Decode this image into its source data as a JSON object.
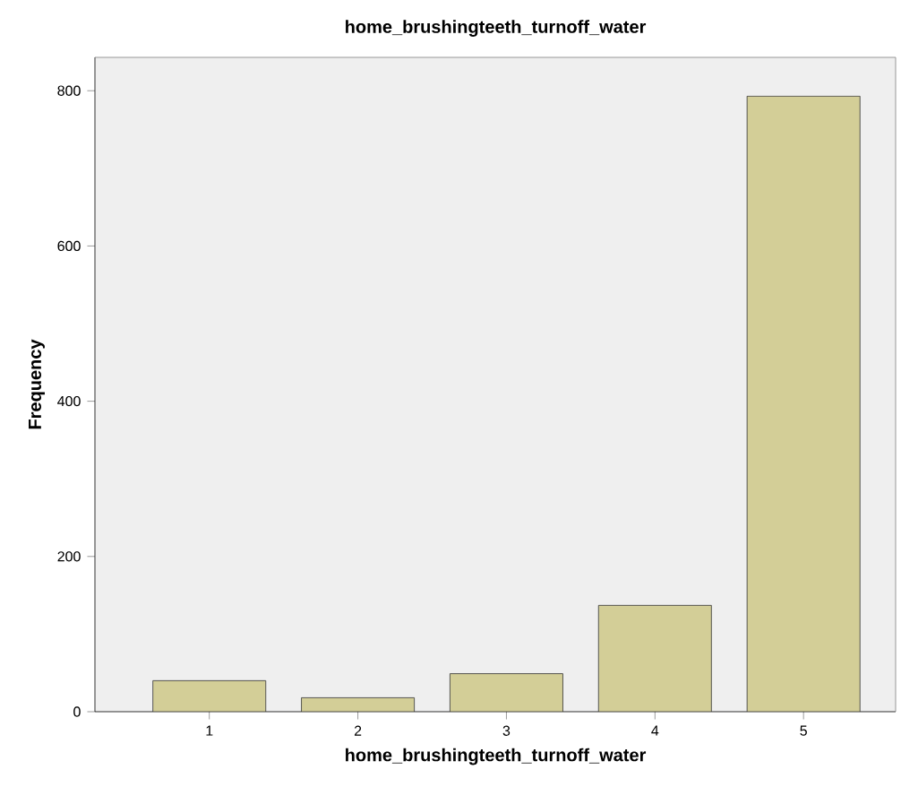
{
  "chart_data": {
    "type": "bar",
    "title": "home_brushingteeth_turnoff_water",
    "xlabel": "home_brushingteeth_turnoff_water",
    "ylabel": "Frequency",
    "categories": [
      "1",
      "2",
      "3",
      "4",
      "5"
    ],
    "values": [
      40,
      18,
      49,
      137,
      793
    ],
    "color": "#d3ce97",
    "ylim": [
      0,
      843
    ],
    "yticks": [
      0,
      200,
      400,
      600,
      800
    ],
    "grid": false
  }
}
